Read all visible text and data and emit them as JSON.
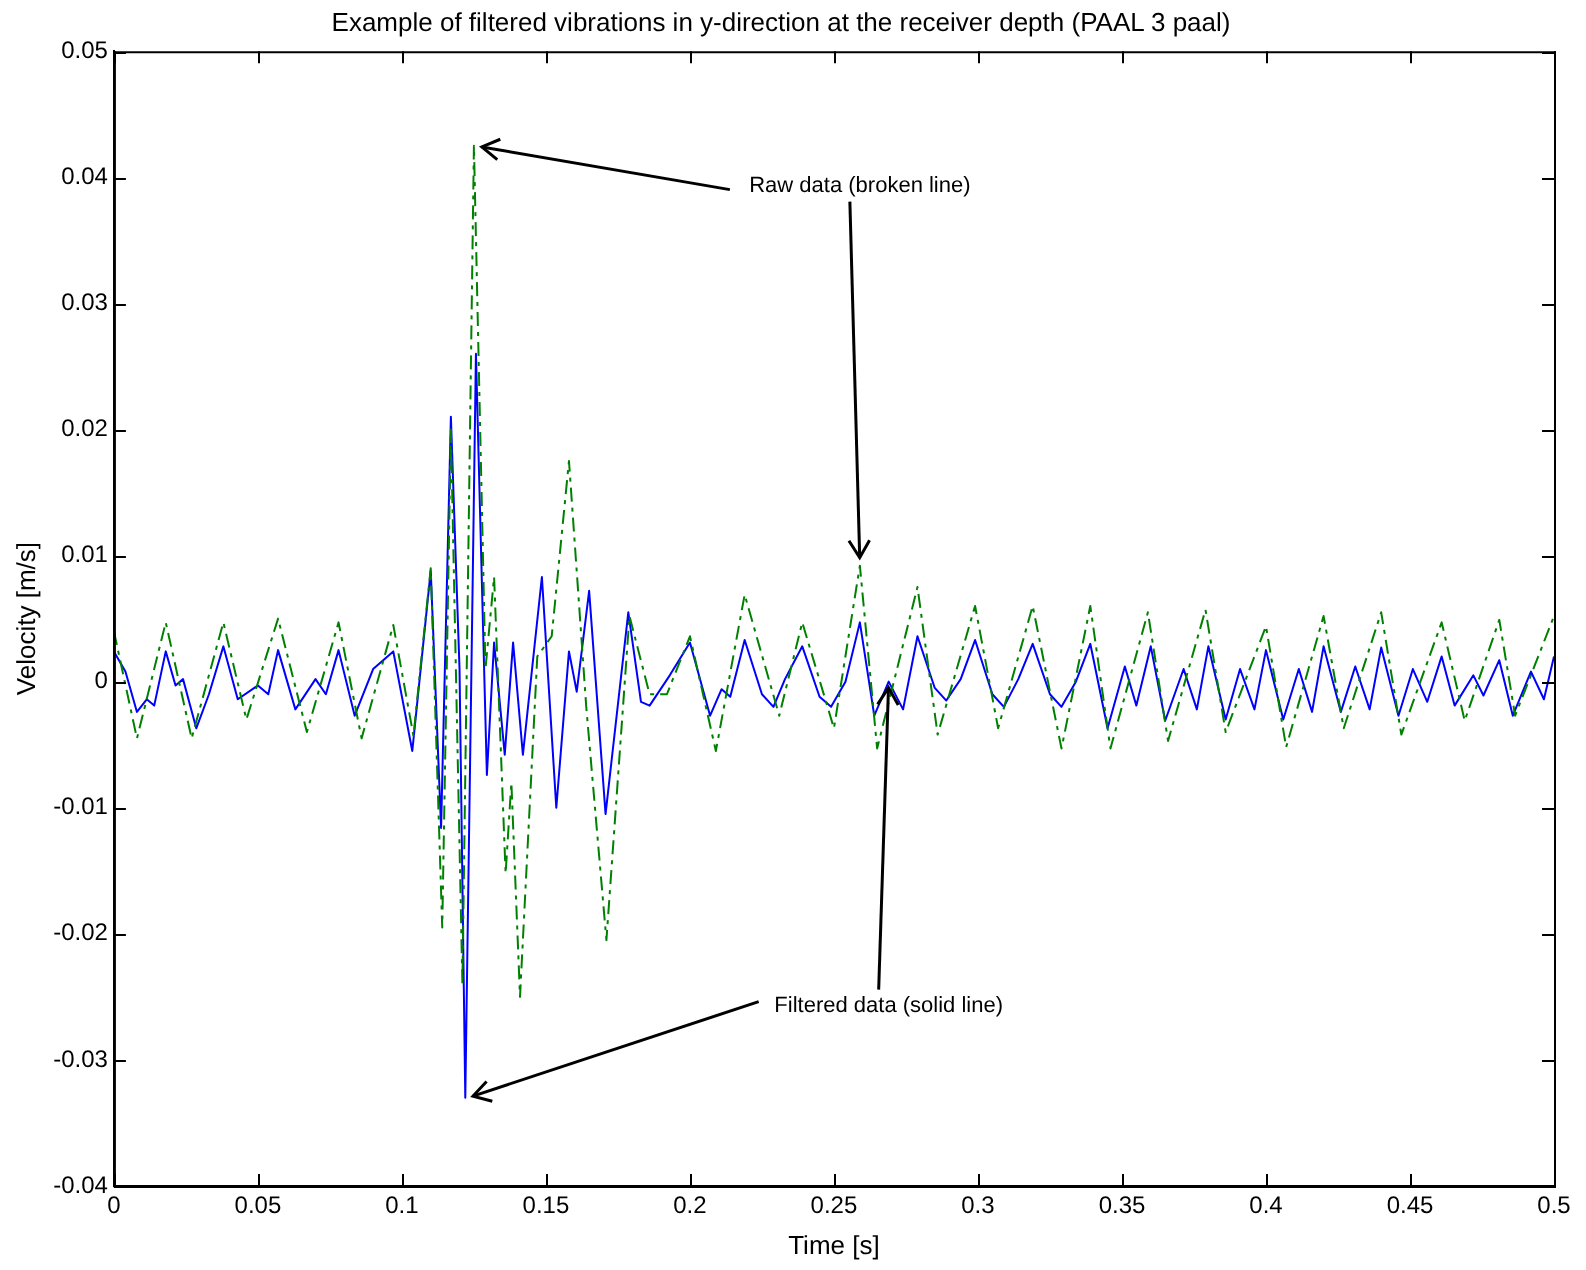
{
  "chart_data": {
    "type": "line",
    "title": "Example of filtered vibrations in y-direction at the receiver depth (PAAL 3 paal)",
    "xlabel": "Time [s]",
    "ylabel": "Velocity [m/s]",
    "xlim": [
      0,
      0.5
    ],
    "xticks": [
      0,
      0.05,
      0.1,
      0.15,
      0.2,
      0.25,
      0.3,
      0.35,
      0.4,
      0.45,
      0.5
    ],
    "ylim": [
      -0.04,
      0.05
    ],
    "yticks": [
      -0.04,
      -0.03,
      -0.02,
      -0.01,
      0,
      0.01,
      0.02,
      0.03,
      0.04,
      0.05
    ],
    "grid": false,
    "legend": false,
    "marker": "none",
    "annotations": [
      {
        "text": "Raw data (broken line)",
        "x": 0.259,
        "y": 0.0092
      },
      {
        "text": "Filtered data (solid line)",
        "x": 0.269,
        "y": 0
      }
    ],
    "series": [
      {
        "color": "#008000",
        "line_style": "dashed",
        "x": [
          0,
          0.008,
          0.018,
          0.027,
          0.038,
          0.046,
          0.057,
          0.067,
          0.078,
          0.086,
          0.097,
          0.104,
          0.11,
          0.114,
          0.117,
          0.121,
          0.125,
          0.129,
          0.132,
          0.136,
          0.138,
          0.141,
          0.147,
          0.152,
          0.158,
          0.164,
          0.171,
          0.179,
          0.186,
          0.192,
          0.2,
          0.209,
          0.219,
          0.231,
          0.239,
          0.25,
          0.259,
          0.265,
          0.279,
          0.286,
          0.299,
          0.307,
          0.319,
          0.329,
          0.339,
          0.346,
          0.359,
          0.366,
          0.379,
          0.386,
          0.4,
          0.407,
          0.42,
          0.427,
          0.44,
          0.447,
          0.461,
          0.469,
          0.481,
          0.4865,
          0.5
        ],
        "values": [
          0.004,
          -0.0045,
          0.0047,
          -0.0045,
          0.0047,
          -0.003,
          0.005,
          -0.004,
          0.0047,
          -0.0045,
          0.0045,
          -0.0043,
          0.009,
          -0.0195,
          0.02,
          -0.024,
          0.0425,
          0.001,
          0.0083,
          -0.0152,
          -0.008,
          -0.025,
          0.002,
          0.0036,
          0.0175,
          -0.002,
          -0.0205,
          0.0052,
          -0.001,
          -0.001,
          0.0036,
          -0.0055,
          0.0069,
          -0.0027,
          0.0047,
          -0.0037,
          0.0092,
          -0.0053,
          0.0075,
          -0.0042,
          0.006,
          -0.0037,
          0.006,
          -0.0053,
          0.006,
          -0.0053,
          0.0055,
          -0.0047,
          0.0057,
          -0.004,
          0.0044,
          -0.0052,
          0.0052,
          -0.0037,
          0.0055,
          -0.0042,
          0.0047,
          -0.0031,
          0.0049,
          -0.0027,
          0.0052
        ]
      },
      {
        "color": "#0000ff",
        "line_style": "solid",
        "x": [
          0,
          0.004,
          0.008,
          0.0114,
          0.014,
          0.018,
          0.0214,
          0.024,
          0.0286,
          0.033,
          0.038,
          0.043,
          0.05,
          0.0536,
          0.057,
          0.063,
          0.07,
          0.0736,
          0.078,
          0.0836,
          0.09,
          0.097,
          0.1036,
          0.11,
          0.1136,
          0.117,
          0.12,
          0.122,
          0.1257,
          0.1295,
          0.132,
          0.1357,
          0.1386,
          0.142,
          0.1486,
          0.1536,
          0.158,
          0.1607,
          0.165,
          0.1707,
          0.1786,
          0.183,
          0.186,
          0.193,
          0.2,
          0.207,
          0.211,
          0.214,
          0.219,
          0.225,
          0.229,
          0.233,
          0.239,
          0.245,
          0.249,
          0.254,
          0.259,
          0.264,
          0.269,
          0.274,
          0.279,
          0.285,
          0.289,
          0.294,
          0.299,
          0.305,
          0.309,
          0.314,
          0.319,
          0.325,
          0.329,
          0.334,
          0.339,
          0.345,
          0.351,
          0.355,
          0.36,
          0.365,
          0.3714,
          0.376,
          0.38,
          0.386,
          0.391,
          0.396,
          0.4,
          0.406,
          0.4114,
          0.416,
          0.42,
          0.426,
          0.431,
          0.436,
          0.44,
          0.446,
          0.451,
          0.456,
          0.461,
          0.4655,
          0.472,
          0.4755,
          0.481,
          0.4857,
          0.492,
          0.4965,
          0.5
        ],
        "values": [
          0.0024,
          0.0008,
          -0.0024,
          -0.0014,
          -0.0019,
          0.0024,
          -0.0003,
          0.0002,
          -0.0037,
          -0.001,
          0.0028,
          -0.0014,
          -0.0003,
          -0.001,
          0.0025,
          -0.0022,
          0.0002,
          -0.001,
          0.0025,
          -0.0027,
          0.001,
          0.0024,
          -0.0055,
          0.0088,
          -0.0116,
          0.021,
          0.001,
          -0.033,
          0.026,
          -0.0074,
          0.0031,
          -0.0058,
          0.0031,
          -0.0058,
          0.0083,
          -0.01,
          0.0024,
          -0.0008,
          0.0072,
          -0.0105,
          0.0055,
          -0.0016,
          -0.0019,
          0.0005,
          0.0031,
          -0.0027,
          -0.0006,
          -0.0012,
          0.0033,
          -0.001,
          -0.002,
          0.0002,
          0.0028,
          -0.0012,
          -0.002,
          0.0,
          0.0047,
          -0.0027,
          0.0,
          -0.0022,
          0.0036,
          -0.0005,
          -0.0015,
          0.0002,
          0.0033,
          -0.001,
          -0.002,
          0.0002,
          0.003,
          -0.001,
          -0.002,
          0.0,
          0.003,
          -0.0037,
          0.0012,
          -0.0019,
          0.0028,
          -0.0031,
          0.001,
          -0.0022,
          0.0028,
          -0.003,
          0.001,
          -0.0022,
          0.0025,
          -0.003,
          0.001,
          -0.0024,
          0.0028,
          -0.0024,
          0.0012,
          -0.0022,
          0.0027,
          -0.0027,
          0.001,
          -0.0016,
          0.002,
          -0.0019,
          0.0005,
          -0.0011,
          0.0017,
          -0.0027,
          0.0008,
          -0.0014,
          0.002
        ]
      }
    ]
  }
}
